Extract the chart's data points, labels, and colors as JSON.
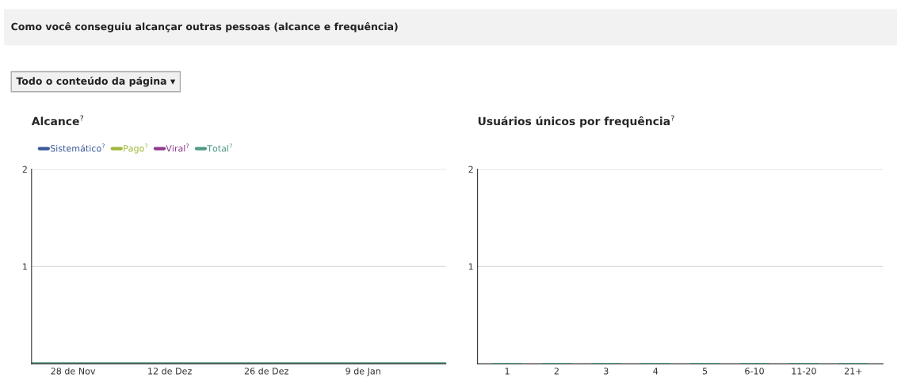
{
  "chart_data": [
    {
      "type": "line",
      "title": "Alcance$^{?}$",
      "annotations": [
        "Como você conseguiu alcançar outras pessoas (alcance e frequência)",
        "Todo o conteúdo da página ▾"
      ],
      "categories": [
        null,
        null,
        null,
        null,
        null,
        null,
        "28 de Nov",
        null,
        null,
        null,
        null,
        null,
        null,
        null,
        null,
        null,
        null,
        null,
        null,
        null,
        "12 de Dez",
        null,
        null,
        null,
        null,
        null,
        null,
        null,
        null,
        null,
        null,
        null,
        null,
        null,
        "26 de Dez",
        null,
        null,
        null,
        null,
        null,
        null,
        null,
        null,
        null,
        null,
        null,
        null,
        null,
        "9 de Jan",
        null,
        null,
        null,
        null,
        null,
        null,
        null,
        null,
        null,
        null,
        null,
        null
      ],
      "series": [
        {
          "name": "Sistemático$^{?}$",
          "color": "#3b5998",
          "values": [
            null,
            null,
            null,
            null,
            null,
            null,
            null,
            null,
            null,
            null,
            null,
            null,
            null,
            null,
            null,
            null,
            null,
            null,
            null,
            null,
            null,
            null,
            null,
            null,
            null,
            null,
            null,
            null,
            null,
            null,
            null,
            null,
            null,
            null,
            null,
            null,
            null,
            null,
            null,
            null,
            null,
            null,
            null,
            null,
            null,
            null,
            null,
            null,
            null,
            null,
            null,
            null,
            null,
            null,
            null,
            null,
            null,
            null,
            null,
            null,
            null
          ]
        },
        {
          "name": "Pago$^{?}$",
          "color": "#9fb83a",
          "values": [
            null,
            null,
            null,
            null,
            null,
            null,
            null,
            null,
            null,
            null,
            null,
            null,
            null,
            null,
            null,
            null,
            null,
            null,
            null,
            null,
            null,
            null,
            null,
            null,
            null,
            null,
            null,
            null,
            null,
            null,
            null,
            null,
            null,
            null,
            null,
            null,
            null,
            null,
            null,
            null,
            null,
            null,
            null,
            null,
            null,
            null,
            null,
            null,
            null,
            null,
            null,
            null,
            null,
            null,
            null,
            null,
            null,
            null,
            null,
            null,
            null
          ]
        },
        {
          "name": "Viral$^{?}$",
          "color": "#8e3a8e",
          "values": [
            null,
            null,
            null,
            null,
            null,
            null,
            null,
            null,
            null,
            null,
            null,
            null,
            null,
            null,
            null,
            null,
            null,
            null,
            null,
            null,
            null,
            null,
            null,
            null,
            null,
            null,
            null,
            null,
            null,
            null,
            null,
            null,
            null,
            null,
            null,
            null,
            null,
            null,
            null,
            null,
            null,
            null,
            null,
            null,
            null,
            null,
            null,
            null,
            null,
            null,
            null,
            null,
            null,
            null,
            null,
            null,
            null,
            null,
            null,
            null,
            null
          ]
        },
        {
          "name": "Total$^{?}$",
          "color": "#4f9a86",
          "values": [
            0,
            0,
            0,
            0,
            0,
            0,
            0,
            0,
            0,
            0,
            0,
            0,
            0,
            0,
            0,
            0,
            0,
            0,
            0,
            0,
            0,
            0,
            0,
            0,
            0,
            0,
            0,
            0,
            0,
            0,
            0,
            0,
            0,
            0,
            0,
            0,
            0,
            0,
            0,
            0,
            0,
            0,
            0,
            0,
            0,
            0,
            0,
            0,
            0,
            0,
            0,
            0,
            0,
            0,
            0,
            0,
            0,
            0,
            0,
            0,
            0
          ]
        }
      ],
      "ylim": [
        0,
        2
      ],
      "yticks": [
        1,
        2
      ],
      "grid": "y",
      "legend": "top left"
    },
    {
      "type": "bar",
      "title": "Usuários únicos por frequência$^{?}$",
      "categories": [
        "1",
        "2",
        "3",
        "4",
        "5",
        "6-10",
        "11-20",
        "21+"
      ],
      "values": [
        0,
        0,
        0,
        0,
        0,
        0,
        0,
        0
      ],
      "color": "#4f9a86",
      "ylim": [
        0,
        2
      ],
      "yticks": [
        1,
        2
      ],
      "grid": "y"
    }
  ]
}
